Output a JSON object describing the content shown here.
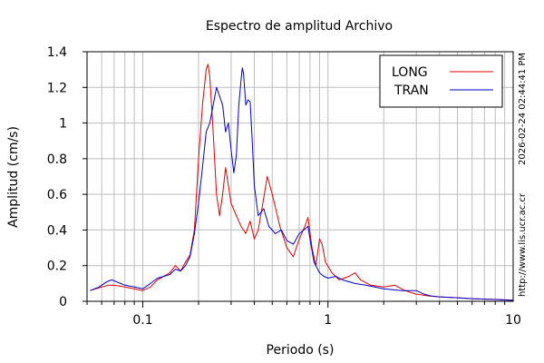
{
  "chart_data": {
    "type": "line",
    "title": "Espectro de amplitud Archivo",
    "xlabel": "Periodo (s)",
    "ylabel": "Amplitud (cm/s)",
    "x_scale": "log",
    "xlim": [
      0.05,
      10
    ],
    "ylim": [
      0,
      1.4
    ],
    "grid": true,
    "legend_position": "top-right",
    "x_ticks": [
      {
        "value": 0.1,
        "label": "0.1"
      },
      {
        "value": 1,
        "label": "1"
      },
      {
        "value": 10,
        "label": "10"
      }
    ],
    "y_ticks": [
      {
        "value": 0,
        "label": "0"
      },
      {
        "value": 0.2,
        "label": "0.2"
      },
      {
        "value": 0.4,
        "label": "0.4"
      },
      {
        "value": 0.6,
        "label": "0.6"
      },
      {
        "value": 0.8,
        "label": "0.8"
      },
      {
        "value": 1.0,
        "label": "1"
      },
      {
        "value": 1.2,
        "label": "1.2"
      },
      {
        "value": 1.4,
        "label": "1.4"
      }
    ],
    "series": [
      {
        "name": "LONG",
        "color": "#dd0000",
        "points": [
          [
            0.052,
            0.06
          ],
          [
            0.06,
            0.08
          ],
          [
            0.065,
            0.09
          ],
          [
            0.07,
            0.09
          ],
          [
            0.08,
            0.08
          ],
          [
            0.09,
            0.07
          ],
          [
            0.1,
            0.06
          ],
          [
            0.11,
            0.08
          ],
          [
            0.12,
            0.12
          ],
          [
            0.13,
            0.14
          ],
          [
            0.14,
            0.16
          ],
          [
            0.15,
            0.2
          ],
          [
            0.16,
            0.17
          ],
          [
            0.17,
            0.22
          ],
          [
            0.18,
            0.26
          ],
          [
            0.19,
            0.4
          ],
          [
            0.2,
            0.8
          ],
          [
            0.21,
            1.1
          ],
          [
            0.22,
            1.3
          ],
          [
            0.225,
            1.33
          ],
          [
            0.23,
            1.26
          ],
          [
            0.24,
            0.95
          ],
          [
            0.25,
            0.6
          ],
          [
            0.26,
            0.48
          ],
          [
            0.27,
            0.6
          ],
          [
            0.28,
            0.75
          ],
          [
            0.29,
            0.65
          ],
          [
            0.3,
            0.55
          ],
          [
            0.32,
            0.48
          ],
          [
            0.34,
            0.42
          ],
          [
            0.36,
            0.38
          ],
          [
            0.38,
            0.45
          ],
          [
            0.4,
            0.35
          ],
          [
            0.42,
            0.4
          ],
          [
            0.45,
            0.58
          ],
          [
            0.47,
            0.7
          ],
          [
            0.5,
            0.6
          ],
          [
            0.55,
            0.42
          ],
          [
            0.6,
            0.3
          ],
          [
            0.65,
            0.25
          ],
          [
            0.7,
            0.35
          ],
          [
            0.75,
            0.42
          ],
          [
            0.78,
            0.47
          ],
          [
            0.82,
            0.3
          ],
          [
            0.86,
            0.2
          ],
          [
            0.9,
            0.35
          ],
          [
            0.93,
            0.32
          ],
          [
            0.97,
            0.22
          ],
          [
            1.05,
            0.16
          ],
          [
            1.15,
            0.12
          ],
          [
            1.3,
            0.14
          ],
          [
            1.4,
            0.16
          ],
          [
            1.5,
            0.12
          ],
          [
            1.7,
            0.09
          ],
          [
            2.0,
            0.08
          ],
          [
            2.3,
            0.09
          ],
          [
            2.6,
            0.06
          ],
          [
            3.0,
            0.04
          ],
          [
            3.5,
            0.03
          ],
          [
            4.0,
            0.025
          ],
          [
            5.0,
            0.02
          ],
          [
            6.0,
            0.015
          ],
          [
            7.0,
            0.012
          ],
          [
            8.0,
            0.01
          ],
          [
            9.0,
            0.008
          ],
          [
            10.0,
            0.006
          ]
        ]
      },
      {
        "name": "TRAN",
        "color": "#0000cc",
        "points": [
          [
            0.052,
            0.06
          ],
          [
            0.058,
            0.08
          ],
          [
            0.064,
            0.11
          ],
          [
            0.068,
            0.12
          ],
          [
            0.072,
            0.11
          ],
          [
            0.08,
            0.09
          ],
          [
            0.09,
            0.08
          ],
          [
            0.1,
            0.07
          ],
          [
            0.11,
            0.1
          ],
          [
            0.12,
            0.13
          ],
          [
            0.13,
            0.14
          ],
          [
            0.14,
            0.15
          ],
          [
            0.15,
            0.18
          ],
          [
            0.16,
            0.17
          ],
          [
            0.17,
            0.2
          ],
          [
            0.18,
            0.25
          ],
          [
            0.19,
            0.38
          ],
          [
            0.2,
            0.55
          ],
          [
            0.21,
            0.75
          ],
          [
            0.22,
            0.95
          ],
          [
            0.23,
            1.0
          ],
          [
            0.24,
            1.1
          ],
          [
            0.25,
            1.2
          ],
          [
            0.26,
            1.15
          ],
          [
            0.27,
            1.1
          ],
          [
            0.28,
            0.95
          ],
          [
            0.29,
            1.0
          ],
          [
            0.3,
            0.85
          ],
          [
            0.31,
            0.72
          ],
          [
            0.32,
            0.82
          ],
          [
            0.33,
            1.1
          ],
          [
            0.34,
            1.25
          ],
          [
            0.345,
            1.31
          ],
          [
            0.35,
            1.28
          ],
          [
            0.36,
            1.1
          ],
          [
            0.37,
            1.13
          ],
          [
            0.38,
            1.12
          ],
          [
            0.39,
            0.9
          ],
          [
            0.4,
            0.65
          ],
          [
            0.42,
            0.48
          ],
          [
            0.45,
            0.52
          ],
          [
            0.48,
            0.42
          ],
          [
            0.52,
            0.38
          ],
          [
            0.56,
            0.4
          ],
          [
            0.6,
            0.34
          ],
          [
            0.65,
            0.32
          ],
          [
            0.7,
            0.38
          ],
          [
            0.74,
            0.4
          ],
          [
            0.78,
            0.42
          ],
          [
            0.8,
            0.35
          ],
          [
            0.84,
            0.22
          ],
          [
            0.9,
            0.16
          ],
          [
            0.95,
            0.14
          ],
          [
            1.0,
            0.13
          ],
          [
            1.1,
            0.14
          ],
          [
            1.2,
            0.12
          ],
          [
            1.4,
            0.1
          ],
          [
            1.6,
            0.09
          ],
          [
            2.0,
            0.07
          ],
          [
            2.5,
            0.06
          ],
          [
            3.0,
            0.06
          ],
          [
            3.3,
            0.04
          ],
          [
            3.6,
            0.03
          ],
          [
            4.0,
            0.025
          ],
          [
            5.0,
            0.02
          ],
          [
            6.0,
            0.015
          ],
          [
            7.0,
            0.012
          ],
          [
            8.0,
            0.01
          ],
          [
            9.0,
            0.007
          ],
          [
            10.0,
            0.005
          ]
        ]
      }
    ],
    "side_text_right": [
      "2026-02-24 02:44:41 PM",
      "http://www.lis.ucr.ac.cr"
    ]
  }
}
